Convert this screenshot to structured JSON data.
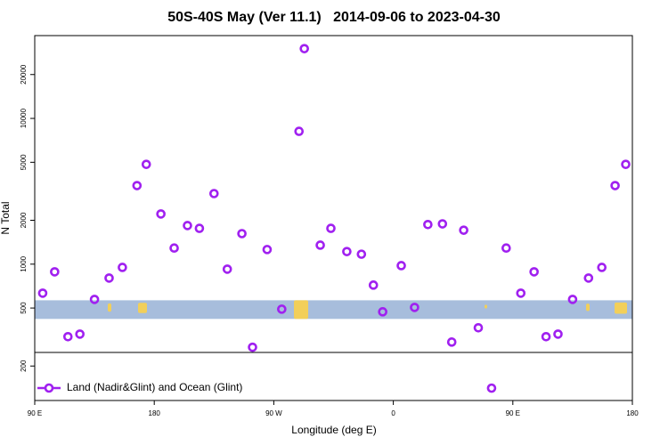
{
  "chart_data": {
    "type": "scatter",
    "title": "50S-40S May (Ver 11.1)   2014-09-06 to 2023-04-30",
    "x_label": "Longitude (deg E)",
    "y_label": "N Total",
    "xlim": [
      90,
      540
    ],
    "xticks": [
      {
        "value": 90,
        "label": "90 E"
      },
      {
        "value": 180,
        "label": "180"
      },
      {
        "value": 270,
        "label": "90 W"
      },
      {
        "value": 360,
        "label": "0"
      },
      {
        "value": 450,
        "label": "90 E"
      },
      {
        "value": 540,
        "label": "180"
      }
    ],
    "ylim": [
      116,
      37000
    ],
    "y_log": true,
    "yticks": [
      200,
      500,
      1000,
      2000,
      5000,
      10000,
      20000
    ],
    "band": [
      421,
      565
    ],
    "band_color": "#a7bddc",
    "legend_position": "bottom-left",
    "series": [
      {
        "name": "Land (Nadir&Glint) and Ocean (Glint)",
        "color": "#a020f0",
        "x": [
          96,
          105,
          115,
          124,
          135,
          146,
          156,
          167,
          174,
          185,
          195,
          205,
          214,
          225,
          235,
          246,
          254,
          265,
          276,
          289,
          293,
          305,
          313,
          325,
          336,
          345,
          352,
          366,
          376,
          386,
          397,
          404,
          413,
          424,
          434,
          445,
          456,
          466,
          475,
          484,
          495,
          507,
          517,
          527,
          535
        ],
        "values": [
          632,
          886,
          318,
          331,
          573,
          803,
          950,
          3460,
          4840,
          2210,
          1290,
          1840,
          1760,
          3050,
          924,
          1620,
          269,
          1260,
          491,
          8150,
          30100,
          1350,
          1760,
          1220,
          1170,
          718,
          471,
          977,
          505,
          1870,
          1890,
          292,
          1710,
          366,
          141,
          1290,
          632,
          886,
          318,
          331,
          573,
          803,
          950,
          3460,
          4840
        ]
      }
    ]
  }
}
